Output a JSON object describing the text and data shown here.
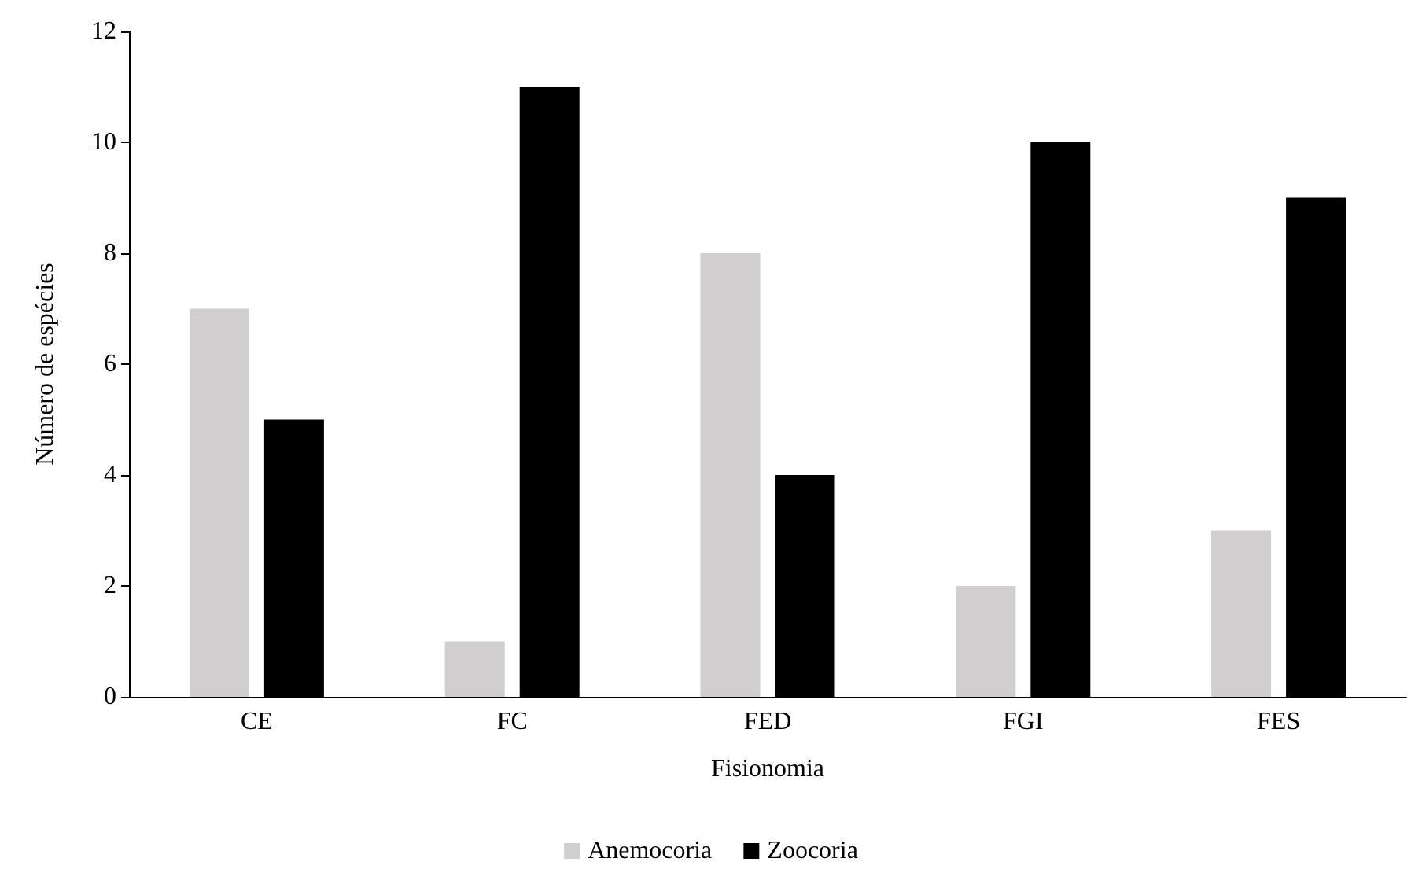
{
  "chart_data": {
    "type": "bar",
    "xlabel": "Fisionomia",
    "ylabel": "Número de espécies",
    "categories": [
      "CE",
      "FC",
      "FED",
      "FGI",
      "FES"
    ],
    "series": [
      {
        "name": "Anemocoria",
        "color": "#d0cece",
        "values": [
          7,
          1,
          8,
          2,
          3
        ]
      },
      {
        "name": "Zoocoria",
        "color": "#000000",
        "values": [
          5,
          11,
          4,
          10,
          9
        ]
      }
    ],
    "ylim": [
      0,
      12
    ],
    "yticks": [
      0,
      2,
      4,
      6,
      8,
      10,
      12
    ],
    "grid": false,
    "legend": "bottom"
  }
}
